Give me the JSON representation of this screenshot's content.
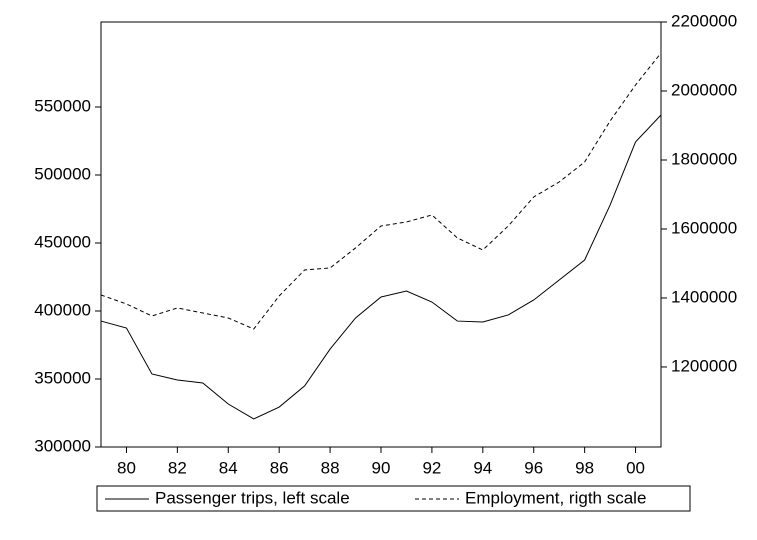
{
  "chart_data": {
    "type": "line",
    "x": [
      1979,
      1980,
      1981,
      1982,
      1983,
      1984,
      1985,
      1986,
      1987,
      1988,
      1989,
      1990,
      1991,
      1992,
      1993,
      1994,
      1995,
      1996,
      1997,
      1998,
      1999,
      2000,
      2001
    ],
    "series": [
      {
        "name": "Passenger trips, left scale",
        "color": "#000000",
        "line_style": "solid",
        "values": [
          392600,
          387500,
          353700,
          349300,
          347100,
          331600,
          320600,
          329400,
          344900,
          372000,
          394900,
          410300,
          414700,
          406600,
          392600,
          391900,
          397100,
          408100,
          422800,
          437500,
          477900,
          524300,
          544100
        ]
      },
      {
        "name": "Employment, rigth scale",
        "color": "#000000",
        "line_style": "dashed",
        "axis": "y2",
        "values": [
          1408700,
          1382600,
          1347800,
          1371000,
          1356500,
          1342000,
          1310100,
          1405800,
          1481200,
          1487000,
          1545000,
          1608700,
          1620300,
          1640600,
          1574000,
          1539100,
          1608700,
          1692800,
          1736200,
          1794200,
          1913000,
          2017400,
          2110100
        ]
      }
    ],
    "xlim": [
      1979,
      2001
    ],
    "xticks": [
      {
        "value": 1980,
        "label": "80"
      },
      {
        "value": 1982,
        "label": "82"
      },
      {
        "value": 1984,
        "label": "84"
      },
      {
        "value": 1986,
        "label": "86"
      },
      {
        "value": 1988,
        "label": "88"
      },
      {
        "value": 1990,
        "label": "90"
      },
      {
        "value": 1992,
        "label": "92"
      },
      {
        "value": 1994,
        "label": "94"
      },
      {
        "value": 1996,
        "label": "96"
      },
      {
        "value": 1998,
        "label": "98"
      },
      {
        "value": 2000,
        "label": "00"
      }
    ],
    "ylim": [
      300000,
      612500
    ],
    "yticks": [
      300000,
      350000,
      400000,
      450000,
      500000,
      550000
    ],
    "y2lim": [
      968000,
      2200000
    ],
    "y2ticks": [
      1200000,
      1400000,
      1600000,
      1800000,
      2000000,
      2200000
    ],
    "grid": false,
    "legend": "bottom"
  }
}
